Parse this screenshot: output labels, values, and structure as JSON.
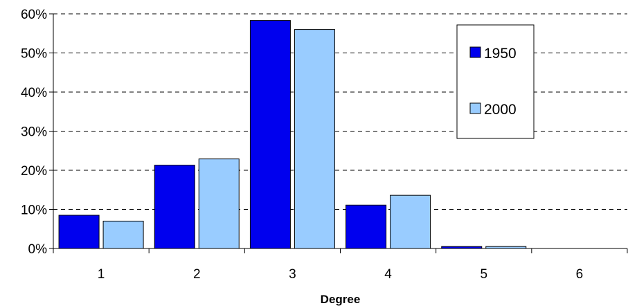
{
  "chart_data": {
    "type": "bar",
    "categories": [
      "1",
      "2",
      "3",
      "4",
      "5",
      "6"
    ],
    "series": [
      {
        "name": "1950",
        "color": "#0000ee",
        "values": [
          8.5,
          21.3,
          58.3,
          11.1,
          0.5,
          0.0
        ]
      },
      {
        "name": "2000",
        "color": "#99ccff",
        "values": [
          7.0,
          22.9,
          56.0,
          13.6,
          0.5,
          0.0
        ]
      }
    ],
    "title": "",
    "xlabel": "Degree",
    "ylabel": "",
    "ylim": [
      0,
      60
    ],
    "yticks": [
      "0%",
      "10%",
      "20%",
      "30%",
      "40%",
      "50%",
      "60%"
    ],
    "grid": "horizontal dashed",
    "legend_position": "top-right"
  }
}
